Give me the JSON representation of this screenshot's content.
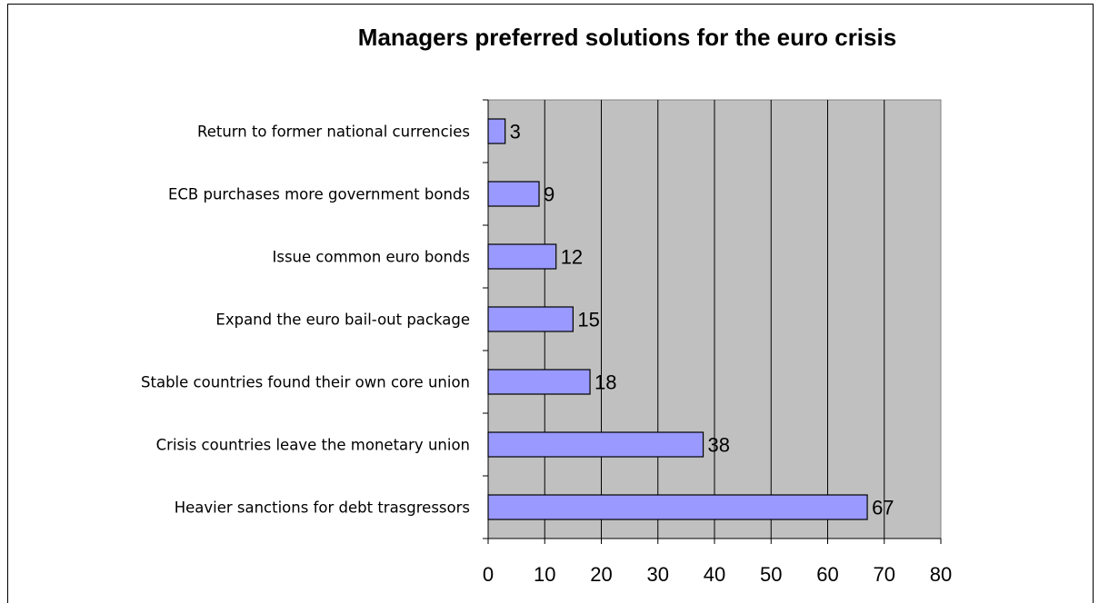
{
  "chart_data": {
    "type": "bar",
    "orientation": "horizontal",
    "title": "Managers preferred solutions for the euro crisis",
    "xlabel": "",
    "ylabel": "",
    "categories": [
      "Return to former national currencies",
      "ECB purchases more government bonds",
      "Issue common euro bonds",
      "Expand the euro bail-out package",
      "Stable countries found their own core union",
      "Crisis countries leave the monetary union",
      "Heavier sanctions for debt trasgressors"
    ],
    "values": [
      3,
      9,
      12,
      15,
      18,
      38,
      67
    ],
    "xlim": [
      0,
      80
    ],
    "xticks": [
      0,
      10,
      20,
      30,
      40,
      50,
      60,
      70,
      80
    ],
    "grid": true,
    "legend": "none",
    "colors": {
      "bar_fill": "#9999FF",
      "plot_background": "#C0C0C0",
      "gridline": "#000000"
    }
  }
}
